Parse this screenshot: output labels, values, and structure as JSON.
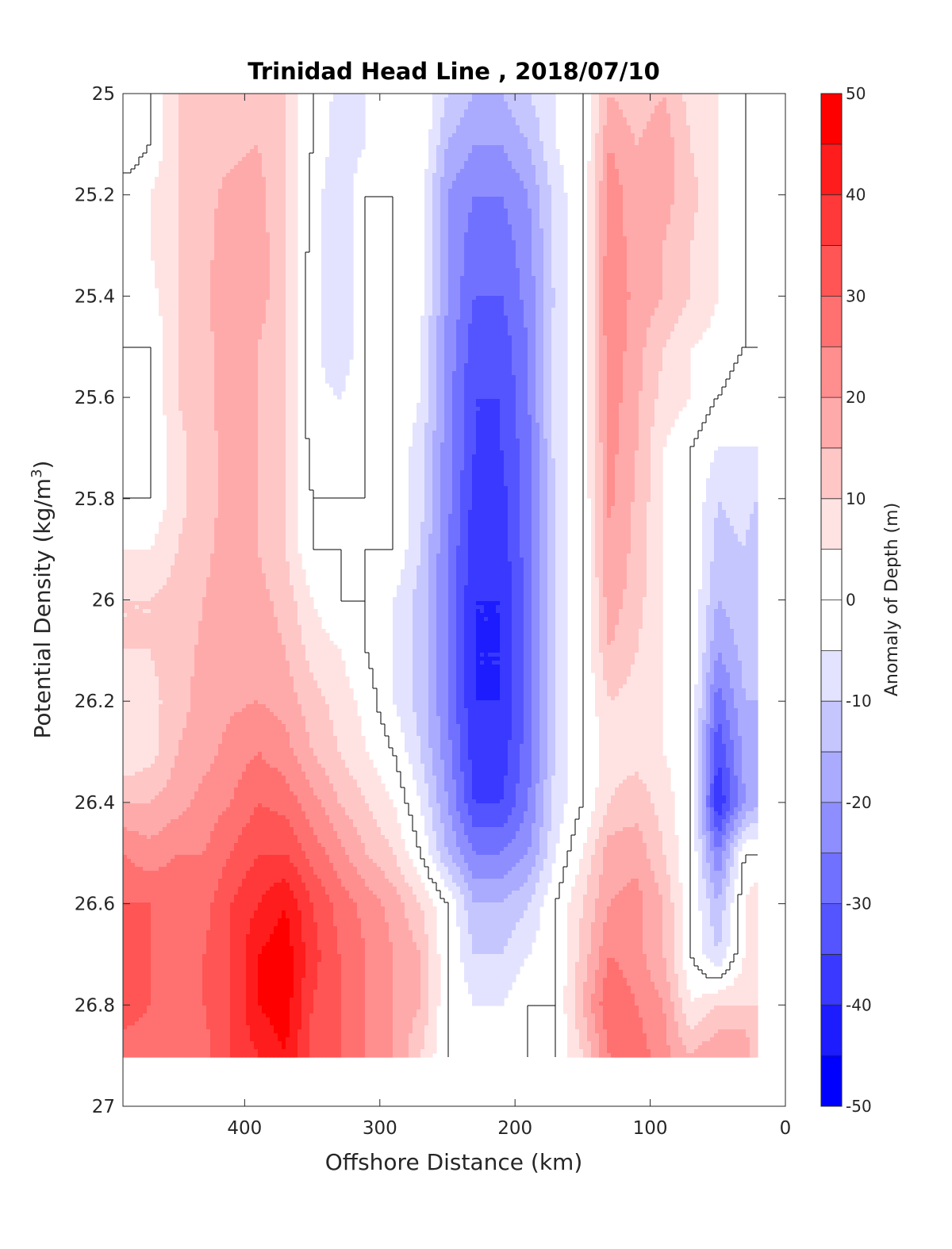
{
  "chart_data": {
    "type": "heatmap",
    "subtype": "filled-contour",
    "title": "Trinidad Head Line , 2018/07/10",
    "xlabel": "Offshore Distance (km)",
    "ylabel_main": "Potential Density (kg/m",
    "ylabel_sup": "3",
    "ylabel_close": ")",
    "colorbar_label": "Anomaly of Depth (m)",
    "xlim": [
      490,
      0
    ],
    "x_reversed": true,
    "ylim": [
      25,
      27
    ],
    "y_reversed": true,
    "x_ticks": [
      400,
      300,
      200,
      100,
      0
    ],
    "x_tick_labels": [
      "400",
      "300",
      "200",
      "100",
      "0"
    ],
    "y_ticks": [
      25,
      25.2,
      25.4,
      25.6,
      25.8,
      26,
      26.2,
      26.4,
      26.6,
      26.8,
      27
    ],
    "y_tick_labels": [
      "25",
      "25.2",
      "25.4",
      "25.6",
      "25.8",
      "26",
      "26.2",
      "26.4",
      "26.6",
      "26.8",
      "27"
    ],
    "colorbar_range": [
      -50,
      50
    ],
    "colorbar_step": 5,
    "colorbar_ticks": [
      50,
      40,
      30,
      20,
      10,
      0,
      -10,
      -20,
      -30,
      -40,
      -50
    ],
    "colorbar_tick_labels": [
      "50",
      "40",
      "30",
      "20",
      "10",
      "0",
      "-10",
      "-20",
      "-30",
      "-40",
      "-50"
    ],
    "colormap": "blue-white-red",
    "zero_contour_shown": true,
    "grid": false,
    "data_extent": {
      "x": [
        490,
        20
      ],
      "y": [
        25,
        26.9
      ]
    },
    "grid_x": [
      490,
      470,
      450,
      430,
      410,
      390,
      370,
      350,
      330,
      310,
      290,
      270,
      250,
      230,
      210,
      190,
      170,
      150,
      130,
      110,
      90,
      70,
      50,
      30,
      20
    ],
    "grid_y": [
      25,
      25.1,
      25.2,
      25.3,
      25.4,
      25.5,
      25.6,
      25.7,
      25.8,
      25.9,
      26,
      26.1,
      26.2,
      26.3,
      26.4,
      26.5,
      26.6,
      26.7,
      26.8,
      26.9
    ],
    "anomaly_m": [
      [
        -5,
        0,
        10,
        12,
        12,
        12,
        10,
        0,
        -7,
        -5,
        -5,
        0,
        -10,
        -15,
        -15,
        -10,
        -5,
        0,
        15,
        12,
        15,
        8,
        5,
        0,
        0
      ],
      [
        -5,
        0,
        10,
        14,
        14,
        15,
        10,
        0,
        -8,
        -5,
        -4,
        0,
        -15,
        -20,
        -20,
        -15,
        -5,
        0,
        20,
        15,
        18,
        10,
        5,
        0,
        0
      ],
      [
        3,
        5,
        10,
        14,
        16,
        17,
        10,
        -2,
        -10,
        0,
        0,
        -3,
        -20,
        -25,
        -25,
        -20,
        -8,
        0,
        23,
        17,
        17,
        12,
        5,
        0,
        0
      ],
      [
        5,
        5,
        10,
        14,
        17,
        18,
        10,
        -2,
        -10,
        0,
        0,
        -3,
        -20,
        -28,
        -28,
        -22,
        -8,
        0,
        24,
        17,
        15,
        10,
        5,
        0,
        0
      ],
      [
        0,
        3,
        10,
        14,
        18,
        18,
        10,
        -3,
        -10,
        0,
        0,
        -3,
        -20,
        -30,
        -30,
        -23,
        -9,
        0,
        25,
        18,
        15,
        10,
        5,
        0,
        0
      ],
      [
        0,
        0,
        10,
        14,
        17,
        15,
        10,
        -3,
        -10,
        0,
        0,
        -5,
        -22,
        -33,
        -33,
        -25,
        -8,
        0,
        24,
        17,
        10,
        5,
        3,
        0,
        0
      ],
      [
        0,
        0,
        10,
        14,
        17,
        15,
        10,
        -3,
        -5,
        0,
        0,
        -5,
        -22,
        -35,
        -35,
        -25,
        -8,
        0,
        23,
        16,
        8,
        5,
        0,
        -3,
        -3
      ],
      [
        0,
        0,
        8,
        13,
        17,
        15,
        10,
        -2,
        -3,
        0,
        0,
        -8,
        -23,
        -35,
        -35,
        -27,
        -8,
        0,
        22,
        15,
        5,
        0,
        -5,
        -5,
        -5
      ],
      [
        0,
        0,
        8,
        13,
        17,
        15,
        10,
        0,
        0,
        0,
        0,
        -8,
        -23,
        -37,
        -37,
        -27,
        -10,
        0,
        21,
        14,
        5,
        0,
        -10,
        -8,
        -10
      ],
      [
        5,
        5,
        10,
        14,
        17,
        15,
        10,
        0,
        0,
        0,
        0,
        -10,
        -25,
        -38,
        -38,
        -27,
        -10,
        0,
        20,
        13,
        5,
        0,
        -12,
        -10,
        -15
      ],
      [
        10,
        10,
        12,
        15,
        18,
        17,
        13,
        5,
        0,
        0,
        -5,
        -12,
        -25,
        -40,
        -40,
        -28,
        -10,
        0,
        18,
        12,
        5,
        0,
        -15,
        -12,
        -15
      ],
      [
        10,
        10,
        13,
        16,
        18,
        18,
        15,
        8,
        5,
        0,
        -5,
        -12,
        -25,
        -40,
        -40,
        -28,
        -10,
        0,
        15,
        10,
        5,
        0,
        -20,
        -13,
        -15
      ],
      [
        5,
        8,
        13,
        17,
        19,
        20,
        18,
        12,
        8,
        3,
        -5,
        -12,
        -25,
        -40,
        -40,
        -28,
        -10,
        0,
        10,
        8,
        5,
        0,
        -28,
        -15,
        -15
      ],
      [
        5,
        8,
        15,
        18,
        22,
        25,
        22,
        15,
        10,
        5,
        0,
        -10,
        -23,
        -38,
        -38,
        -27,
        -9,
        0,
        8,
        8,
        5,
        0,
        -35,
        -18,
        -15
      ],
      [
        15,
        15,
        18,
        22,
        25,
        30,
        28,
        22,
        15,
        10,
        5,
        -5,
        -20,
        -35,
        -35,
        -25,
        -8,
        0,
        10,
        13,
        8,
        0,
        -40,
        -20,
        -15
      ],
      [
        25,
        22,
        25,
        25,
        30,
        35,
        35,
        28,
        22,
        15,
        10,
        0,
        -15,
        -25,
        -25,
        -20,
        -5,
        5,
        18,
        18,
        10,
        0,
        -25,
        0,
        0
      ],
      [
        30,
        30,
        28,
        28,
        35,
        40,
        45,
        35,
        28,
        23,
        18,
        10,
        0,
        -15,
        -15,
        -10,
        0,
        10,
        20,
        22,
        15,
        0,
        -15,
        5,
        10
      ],
      [
        35,
        30,
        30,
        30,
        35,
        45,
        48,
        37,
        30,
        25,
        20,
        15,
        0,
        -10,
        -10,
        -5,
        0,
        12,
        25,
        22,
        15,
        0,
        -10,
        5,
        10
      ],
      [
        35,
        30,
        28,
        30,
        35,
        45,
        48,
        35,
        30,
        25,
        20,
        15,
        0,
        -5,
        -5,
        0,
        0,
        15,
        30,
        25,
        20,
        5,
        10,
        10,
        10
      ],
      [
        25,
        25,
        25,
        28,
        35,
        40,
        45,
        33,
        30,
        25,
        20,
        10,
        0,
        0,
        0,
        0,
        0,
        10,
        25,
        28,
        22,
        15,
        20,
        20,
        10
      ]
    ]
  }
}
